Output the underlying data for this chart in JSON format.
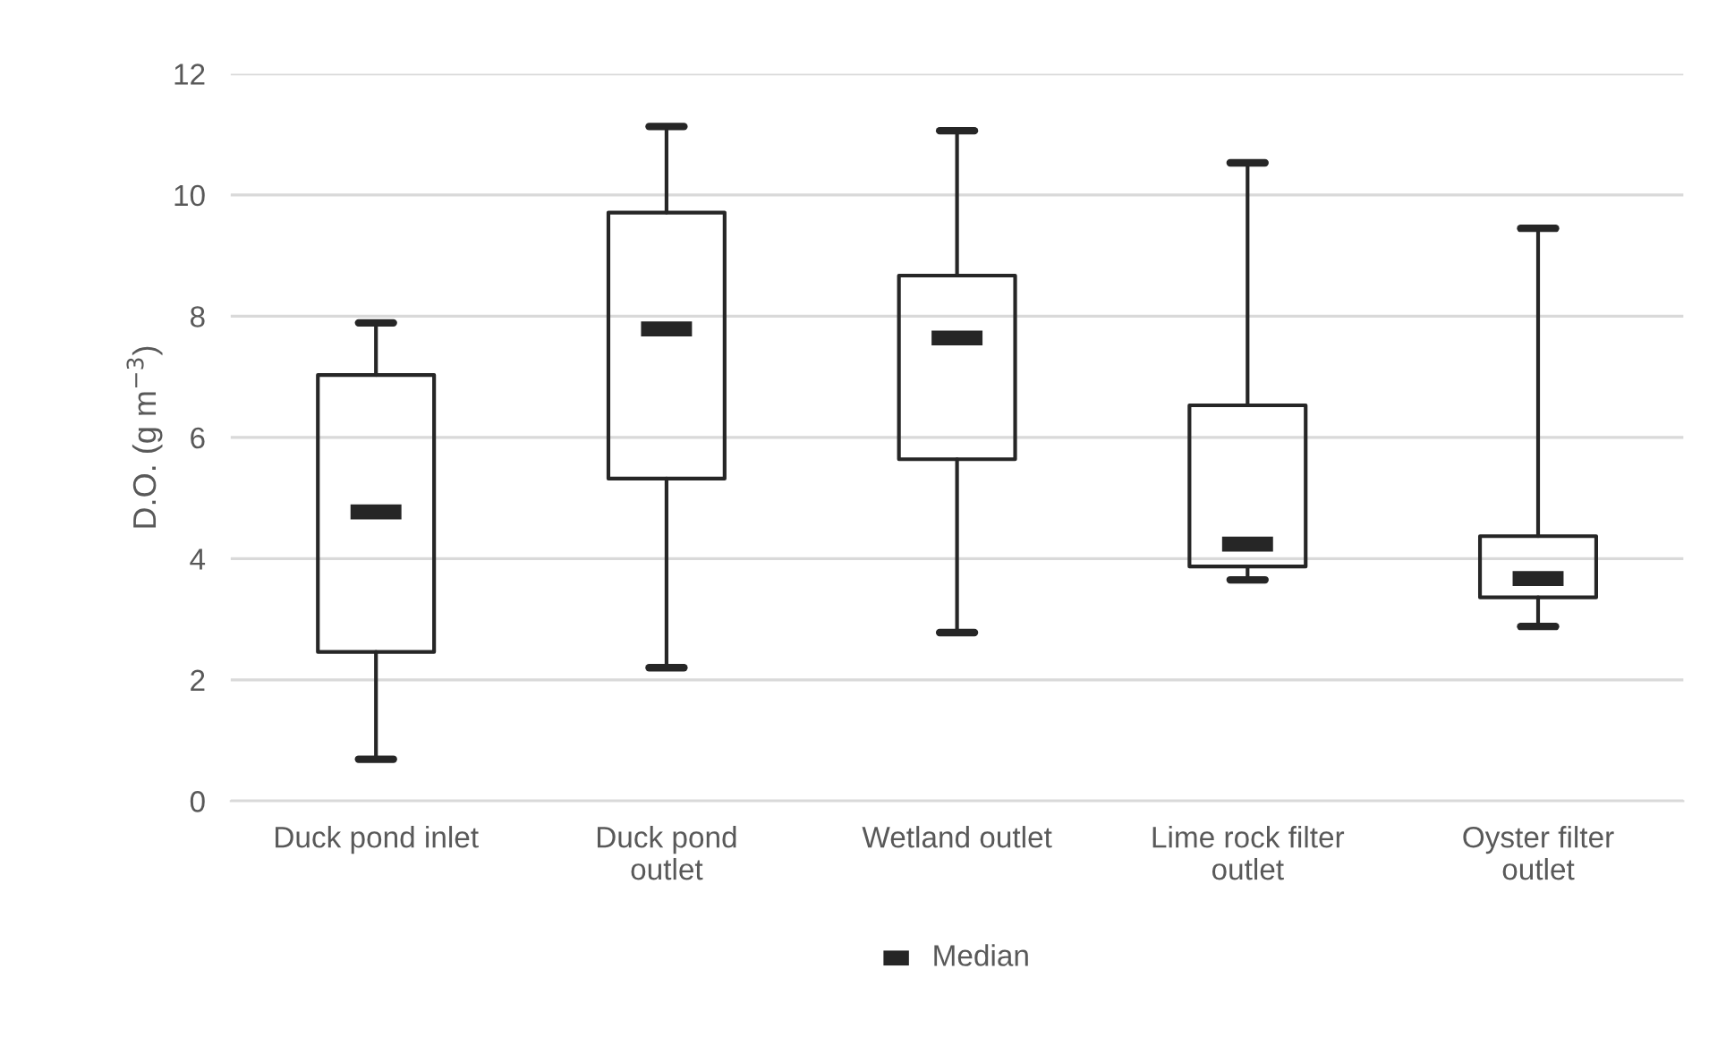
{
  "chart_data": {
    "type": "box",
    "ylabel": "D.O. (g m$^{−3}$)",
    "categories": [
      "Duck pond inlet",
      "Duck pond\noutlet",
      "Wetland outlet",
      "Lime rock filter\noutlet",
      "Oyster filter\noutlet"
    ],
    "series": [
      {
        "name": "Median",
        "color": "#262626",
        "boxes": [
          {
            "low": 0.69,
            "q1": 2.46,
            "median": 4.77,
            "q3": 7.03,
            "high": 7.89
          },
          {
            "low": 2.2,
            "q1": 5.32,
            "median": 7.79,
            "q3": 9.71,
            "high": 11.13
          },
          {
            "low": 2.78,
            "q1": 5.64,
            "median": 7.64,
            "q3": 8.67,
            "high": 11.06
          },
          {
            "low": 3.65,
            "q1": 3.87,
            "median": 4.24,
            "q3": 6.53,
            "high": 10.53
          },
          {
            "low": 2.88,
            "q1": 3.36,
            "median": 3.67,
            "q3": 4.37,
            "high": 9.45
          }
        ]
      }
    ],
    "ylim": [
      0,
      12
    ],
    "yticks": [
      0,
      2,
      4,
      6,
      8,
      10,
      12
    ],
    "grid": "y",
    "legend": "bottom"
  }
}
